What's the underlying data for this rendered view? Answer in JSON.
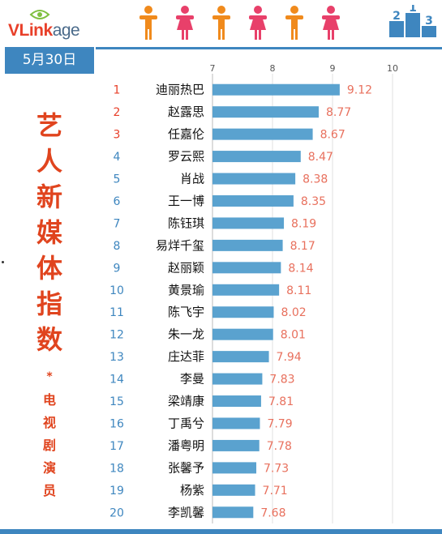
{
  "header": {
    "logo_parts": [
      "VL",
      "ink",
      "age"
    ],
    "podium_digits": [
      "2",
      "1",
      "3"
    ]
  },
  "sidebar": {
    "date": "5月30日",
    "title_chars": [
      "艺",
      "人",
      "新",
      "媒",
      "体",
      "指",
      "数"
    ],
    "asterisk": "*",
    "sub_chars": [
      "电",
      "视",
      "剧",
      "演",
      "员"
    ]
  },
  "colors": {
    "accent_blue": "#3e86bf",
    "bar": "#5aa2cf",
    "rank_top3": "#e8402a",
    "rank_rest": "#3e86bf",
    "value_label": "#e8705d",
    "title_red": "#e0441e",
    "male_icon": "#f08a1c",
    "female_icon": "#e8406a"
  },
  "people_icons": [
    "male-icon",
    "female-icon",
    "male-icon",
    "female-icon",
    "male-icon",
    "female-icon"
  ],
  "chart_data": {
    "type": "bar",
    "orientation": "horizontal",
    "title": "",
    "xlabel": "",
    "ylabel": "",
    "xlim": [
      7,
      10
    ],
    "x_ticks": [
      7,
      8,
      9,
      10
    ],
    "grid": true,
    "categories": [
      "迪丽热巴",
      "赵露思",
      "任嘉伦",
      "罗云熙",
      "肖战",
      "王一博",
      "陈钰琪",
      "易烊千玺",
      "赵丽颖",
      "黄景瑜",
      "陈飞宇",
      "朱一龙",
      "庄达菲",
      "李曼",
      "梁靖康",
      "丁禹兮",
      "潘粤明",
      "张馨予",
      "杨紫",
      "李凯馨"
    ],
    "ranks": [
      "1",
      "2",
      "3",
      "4",
      "5",
      "6",
      "7",
      "8",
      "9",
      "10",
      "11",
      "12",
      "13",
      "14",
      "15",
      "16",
      "17",
      "18",
      "19",
      "20"
    ],
    "values": [
      9.12,
      8.77,
      8.67,
      8.47,
      8.38,
      8.35,
      8.19,
      8.17,
      8.14,
      8.11,
      8.02,
      8.01,
      7.94,
      7.83,
      7.81,
      7.79,
      7.78,
      7.73,
      7.71,
      7.68
    ],
    "value_labels": [
      "9.12",
      "8.77",
      "8.67",
      "8.47",
      "8.38",
      "8.35",
      "8.19",
      "8.17",
      "8.14",
      "8.11",
      "8.02",
      "8.01",
      "7.94",
      "7.83",
      "7.81",
      "7.79",
      "7.78",
      "7.73",
      "7.71",
      "7.68"
    ]
  }
}
